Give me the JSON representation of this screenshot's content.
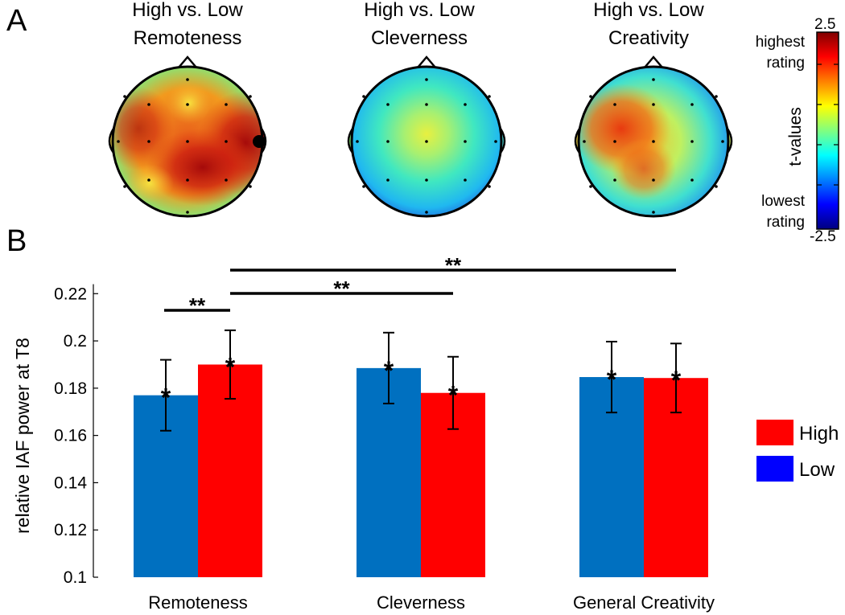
{
  "panels": {
    "a_label": "A",
    "b_label": "B"
  },
  "topomaps": [
    {
      "title_line1": "High vs. Low",
      "title_line2": "Remoteness"
    },
    {
      "title_line1": "High vs. Low",
      "title_line2": "Cleverness"
    },
    {
      "title_line1": "High vs. Low",
      "title_line2": "Creativity"
    }
  ],
  "colorbar": {
    "max_label": "2.5",
    "min_label": "-2.5",
    "top_text_1": "highest",
    "top_text_2": "rating",
    "bottom_text_1": "lowest",
    "bottom_text_2": "rating",
    "axis_label": "t-values",
    "colors": [
      "#7f0000",
      "#ff0000",
      "#ff8000",
      "#ffff00",
      "#80ff80",
      "#00ffff",
      "#0080ff",
      "#0000ff",
      "#00007f"
    ]
  },
  "chart_data": {
    "type": "bar",
    "categories": [
      "Remoteness",
      "Cleverness",
      "General Creativity"
    ],
    "series": [
      {
        "name": "Low",
        "color": "#0070c0",
        "values": [
          0.177,
          0.1885,
          0.1847
        ],
        "error": [
          0.015,
          0.015,
          0.015
        ]
      },
      {
        "name": "High",
        "color": "#ff0000",
        "values": [
          0.19,
          0.178,
          0.1843
        ],
        "error": [
          0.0145,
          0.0153,
          0.0146
        ]
      }
    ],
    "ylabel": "relative IAF power at T8",
    "xlabel": "",
    "ylim": [
      0.1,
      0.232
    ],
    "yticks": [
      0.1,
      0.12,
      0.14,
      0.16,
      0.18,
      0.2,
      0.22
    ],
    "ytick_labels": [
      "0.1",
      "0.12",
      "0.14",
      "0.16",
      "0.18",
      "0.2",
      "0.22"
    ],
    "legend": {
      "position": "right",
      "entries": [
        "High",
        "Low"
      ]
    },
    "significance": [
      {
        "label": "**",
        "from": "Remoteness Low",
        "to": "Remoteness High"
      },
      {
        "label": "**",
        "from": "Remoteness High",
        "to": "Cleverness High"
      },
      {
        "label": "**",
        "from": "Remoteness High",
        "to": "General Creativity High"
      }
    ]
  }
}
